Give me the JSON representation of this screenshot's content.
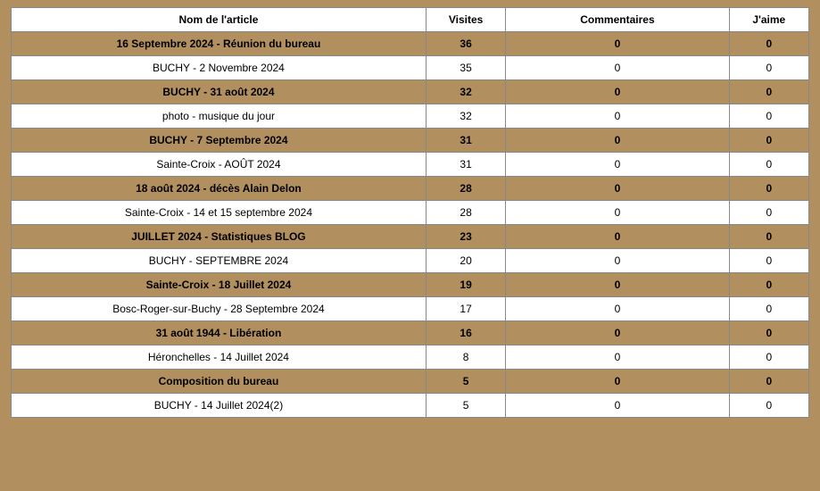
{
  "table": {
    "columns": [
      {
        "key": "name",
        "label": "Nom de l'article"
      },
      {
        "key": "visits",
        "label": "Visites"
      },
      {
        "key": "comments",
        "label": "Commentaires"
      },
      {
        "key": "likes",
        "label": "J'aime"
      }
    ],
    "rows": [
      {
        "name": "16 Septembre 2024 - Réunion du bureau",
        "visits": 36,
        "comments": 0,
        "likes": 0
      },
      {
        "name": "BUCHY - 2 Novembre 2024",
        "visits": 35,
        "comments": 0,
        "likes": 0
      },
      {
        "name": "BUCHY - 31 août 2024",
        "visits": 32,
        "comments": 0,
        "likes": 0
      },
      {
        "name": "photo - musique du jour",
        "visits": 32,
        "comments": 0,
        "likes": 0
      },
      {
        "name": "BUCHY - 7 Septembre 2024",
        "visits": 31,
        "comments": 0,
        "likes": 0
      },
      {
        "name": "Sainte-Croix - AOÛT 2024",
        "visits": 31,
        "comments": 0,
        "likes": 0
      },
      {
        "name": "18 août 2024 - décès Alain Delon",
        "visits": 28,
        "comments": 0,
        "likes": 0
      },
      {
        "name": "Sainte-Croix - 14 et 15 septembre 2024",
        "visits": 28,
        "comments": 0,
        "likes": 0
      },
      {
        "name": "JUILLET 2024 - Statistiques BLOG",
        "visits": 23,
        "comments": 0,
        "likes": 0
      },
      {
        "name": "BUCHY - SEPTEMBRE 2024",
        "visits": 20,
        "comments": 0,
        "likes": 0
      },
      {
        "name": "Sainte-Croix - 18 Juillet 2024",
        "visits": 19,
        "comments": 0,
        "likes": 0
      },
      {
        "name": "Bosc-Roger-sur-Buchy - 28 Septembre 2024",
        "visits": 17,
        "comments": 0,
        "likes": 0
      },
      {
        "name": "31 août 1944 - Libération",
        "visits": 16,
        "comments": 0,
        "likes": 0
      },
      {
        "name": "Héronchelles - 14 Juillet 2024",
        "visits": 8,
        "comments": 0,
        "likes": 0
      },
      {
        "name": "Composition du bureau",
        "visits": 5,
        "comments": 0,
        "likes": 0
      },
      {
        "name": "BUCHY - 14 Juillet 2024(2)",
        "visits": 5,
        "comments": 0,
        "likes": 0
      }
    ],
    "colors": {
      "row_odd_bg": "#b28f5e",
      "row_even_bg": "#ffffff",
      "header_bg": "#ffffff",
      "border": "#888888",
      "page_bg": "#b28f5e"
    }
  }
}
